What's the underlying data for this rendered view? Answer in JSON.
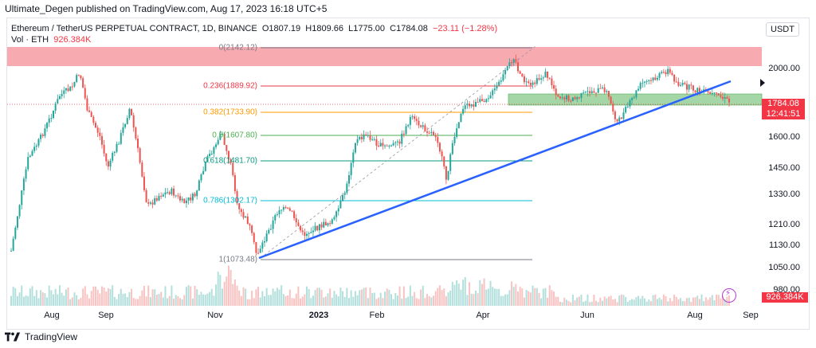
{
  "header": {
    "published": "Ultimate_Degen published on TradingView.com, Aug 17, 2023 16:18 UTC+5"
  },
  "legend": {
    "symbol": "Ethereum / TetherUS PERPETUAL CONTRACT, 1D, BINANCE",
    "open": "O1807.19",
    "high": "H1809.66",
    "low": "L1775.00",
    "close": "C1784.08",
    "change": "−23.11 (−1.28%)",
    "vol_label": "Vol · ETH",
    "vol_value": "926.384K"
  },
  "currency": "USDT",
  "price_axis": [
    "2000.00",
    "1600.00",
    "1450.00",
    "1330.00",
    "1210.00",
    "1130.00",
    "1050.00",
    "980.00"
  ],
  "last_price": "1784.08",
  "countdown": "12:41:51",
  "volume_badge": "926.384K",
  "time_axis": [
    "Aug",
    "Sep",
    "Nov",
    "2023",
    "Feb",
    "Apr",
    "Jun",
    "Aug",
    "Sep"
  ],
  "fib_levels": [
    {
      "label": "0(2142.12)",
      "color": "#787b86"
    },
    {
      "label": "0.236(1889.92)",
      "color": "#f23645"
    },
    {
      "label": "0.382(1733.90)",
      "color": "#ff9800"
    },
    {
      "label": "0.5(1607.80)",
      "color": "#4caf50"
    },
    {
      "label": "0.618(1481.70)",
      "color": "#089981"
    },
    {
      "label": "0.786(1302.17)",
      "color": "#00bcd4"
    },
    {
      "label": "1(1073.48)",
      "color": "#787b86"
    }
  ],
  "footer": {
    "brand": "TradingView"
  },
  "colors": {
    "up": "#26a69a",
    "down": "#ef5350",
    "trendline": "#2962ff",
    "resistance_zone": "#f7a1a8",
    "support_zone": "#99cc99"
  }
}
